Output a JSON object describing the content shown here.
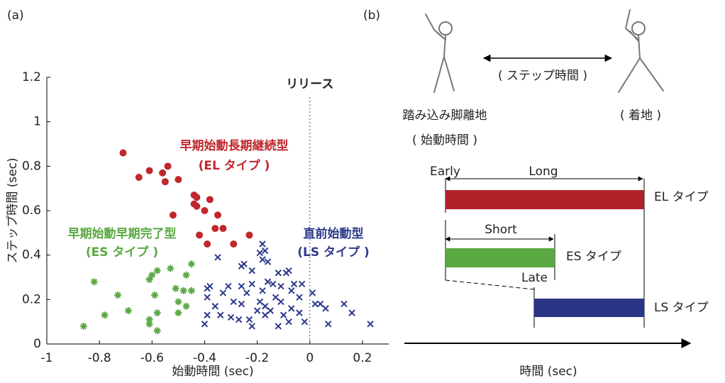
{
  "chart_data": {
    "type": "scatter",
    "panel_label": "(a)",
    "x_label": "始動時間 (sec)",
    "y_label": "ステップ時間 (sec)",
    "xlim": [
      -1,
      0.3
    ],
    "ylim": [
      0,
      1.2
    ],
    "xticks": [
      -1,
      -0.8,
      -0.6,
      -0.4,
      -0.2,
      0,
      0.2
    ],
    "yticks": [
      0,
      0.2,
      0.4,
      0.6,
      0.8,
      1,
      1.2
    ],
    "reference_line": {
      "x": 0,
      "label": "リリース"
    },
    "series": [
      {
        "name": "早期始動長期継続型",
        "label": "(EL タイプ )",
        "color": "#c0282d",
        "marker": "circle",
        "x": [
          -0.71,
          -0.65,
          -0.61,
          -0.56,
          -0.54,
          -0.55,
          -0.5,
          -0.52,
          -0.44,
          -0.43,
          -0.44,
          -0.43,
          -0.38,
          -0.4,
          -0.35,
          -0.42,
          -0.36,
          -0.33,
          -0.39,
          -0.29,
          -0.23
        ],
        "y": [
          0.86,
          0.75,
          0.78,
          0.77,
          0.8,
          0.73,
          0.74,
          0.58,
          0.67,
          0.66,
          0.63,
          0.62,
          0.65,
          0.6,
          0.58,
          0.49,
          0.52,
          0.52,
          0.45,
          0.45,
          0.49
        ]
      },
      {
        "name": "早期始動早期完了型",
        "label": "(ES タイプ )",
        "color": "#5aa842",
        "marker": "asterisk",
        "x": [
          -0.82,
          -0.86,
          -0.78,
          -0.73,
          -0.69,
          -0.59,
          -0.61,
          -0.6,
          -0.58,
          -0.53,
          -0.51,
          -0.58,
          -0.61,
          -0.61,
          -0.58,
          -0.5,
          -0.47,
          -0.48,
          -0.45,
          -0.47,
          -0.45,
          -0.5
        ],
        "y": [
          0.28,
          0.08,
          0.13,
          0.22,
          0.15,
          0.22,
          0.29,
          0.31,
          0.33,
          0.34,
          0.25,
          0.14,
          0.11,
          0.09,
          0.06,
          0.14,
          0.17,
          0.24,
          0.24,
          0.31,
          0.36,
          0.19
        ]
      },
      {
        "name": "直前始動型",
        "label": "(LS タイプ )",
        "color": "#2e3a8c",
        "marker": "cross",
        "x": [
          -0.35,
          -0.39,
          -0.38,
          -0.39,
          -0.39,
          -0.4,
          -0.36,
          -0.33,
          -0.31,
          -0.34,
          -0.29,
          -0.3,
          -0.27,
          -0.26,
          -0.25,
          -0.26,
          -0.24,
          -0.26,
          -0.23,
          -0.22,
          -0.22,
          -0.22,
          -0.19,
          -0.18,
          -0.17,
          -0.18,
          -0.16,
          -0.18,
          -0.16,
          -0.19,
          -0.17,
          -0.17,
          -0.15,
          -0.13,
          -0.14,
          -0.12,
          -0.11,
          -0.09,
          -0.08,
          -0.11,
          -0.1,
          -0.08,
          -0.07,
          -0.06,
          -0.07,
          -0.04,
          -0.03,
          -0.04,
          -0.02,
          0.01,
          0.02,
          0.04,
          0.06,
          0.07,
          0.13,
          0.16,
          0.23,
          -0.12,
          -0.2
        ],
        "y": [
          0.39,
          0.25,
          0.26,
          0.21,
          0.13,
          0.09,
          0.17,
          0.23,
          0.26,
          0.13,
          0.19,
          0.12,
          0.11,
          0.35,
          0.36,
          0.26,
          0.23,
          0.18,
          0.11,
          0.08,
          0.33,
          0.27,
          0.41,
          0.45,
          0.42,
          0.38,
          0.37,
          0.24,
          0.28,
          0.19,
          0.17,
          0.13,
          0.15,
          0.21,
          0.27,
          0.32,
          0.26,
          0.32,
          0.33,
          0.19,
          0.13,
          0.1,
          0.24,
          0.27,
          0.16,
          0.21,
          0.27,
          0.14,
          0.1,
          0.23,
          0.18,
          0.18,
          0.16,
          0.09,
          0.18,
          0.14,
          0.09,
          0.08,
          0.15
        ]
      }
    ]
  },
  "diagram": {
    "panel_label": "(b)",
    "step_time": "( ステップ時間 )",
    "takeoff": "踏み込み脚離地",
    "start_time": "( 始動時間 )",
    "landing": "( 着地 )",
    "early": "Early",
    "long": "Long",
    "el_type": "EL タイプ",
    "short": "Short",
    "es_type": "ES タイプ",
    "late": "Late",
    "ls_type": "LS タイプ",
    "time_axis": "時間 (sec)"
  }
}
